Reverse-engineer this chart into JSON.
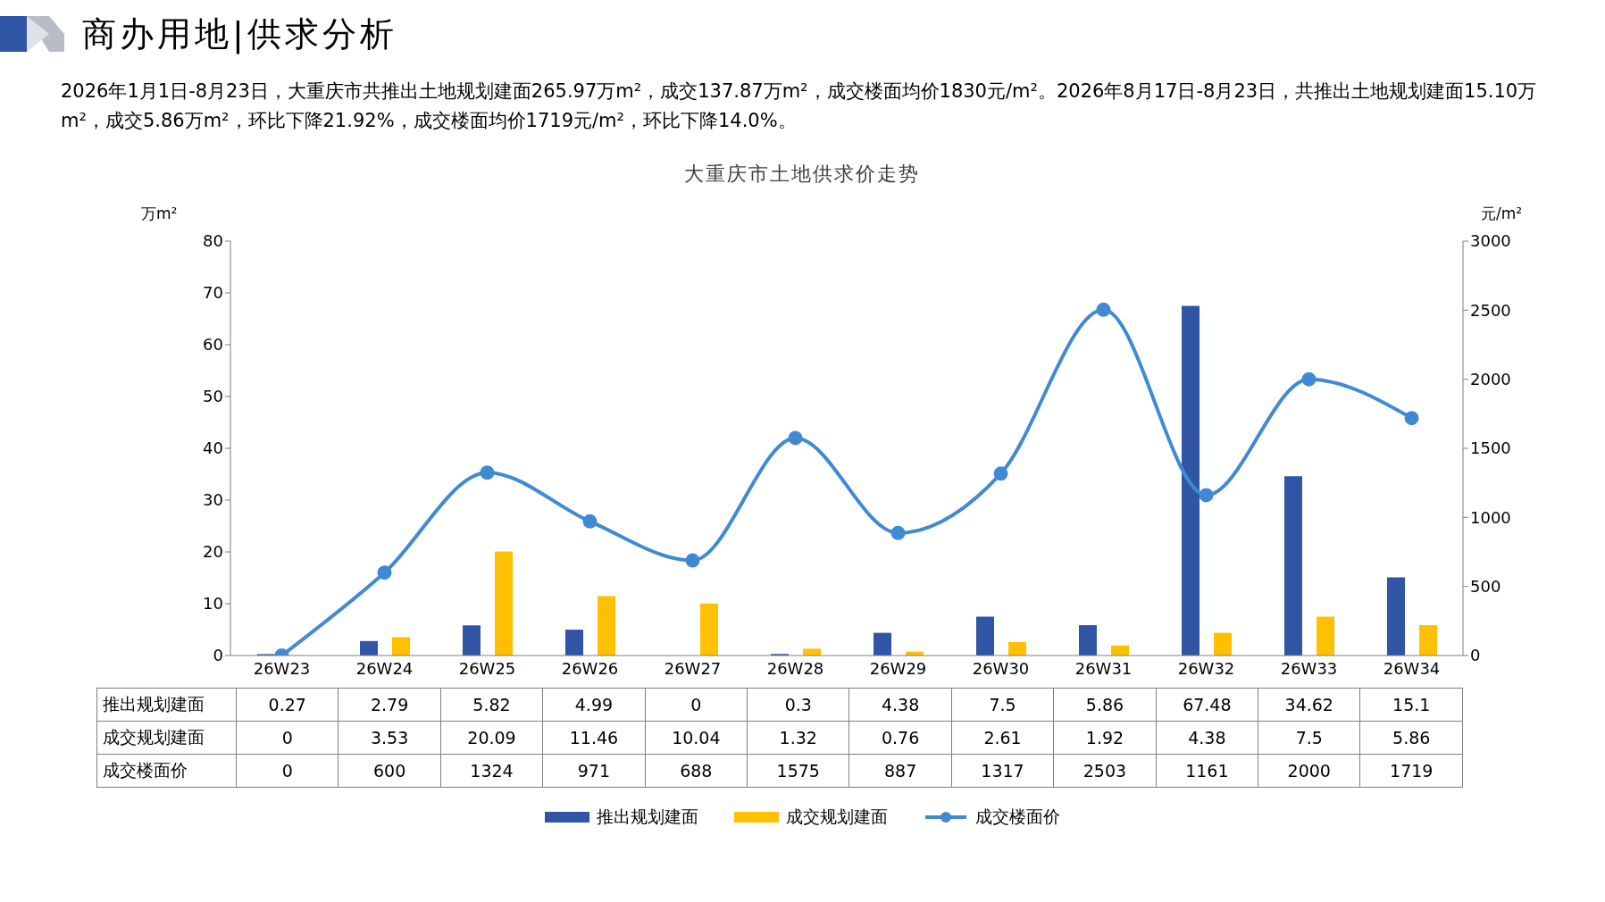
{
  "chart_data": {
    "type": "bar",
    "title": "大重庆市土地供求价走势",
    "subtitle": "2026年1月1日-8月23日，大重庆市共推出土地规划建面265.97万m²，成交137.87万m²，成交楼面均价1830元/m²。2026年8月17日-8月23日，共推出土地规划建面15.10万m²，成交5.86万m²，环比下降21.92%，成交楼面均价1719元/m²，环比下降14.0%。",
    "annotations": [
      "商办用地|供求分析"
    ],
    "ylabel": "万m²",
    "y2label": "元/m²",
    "categories": [
      "26W23",
      "26W24",
      "26W25",
      "26W26",
      "26W27",
      "26W28",
      "26W29",
      "26W30",
      "26W31",
      "26W32",
      "26W33",
      "26W34"
    ],
    "series": [
      {
        "name": "推出规划建面",
        "color": "#2f55a4",
        "values": [
          0.27,
          2.79,
          5.82,
          4.99,
          0,
          0.3,
          4.38,
          7.5,
          5.86,
          67.48,
          34.62,
          15.1
        ]
      },
      {
        "name": "成交规划建面",
        "color": "#ffc000",
        "values": [
          0,
          3.53,
          20.09,
          11.46,
          10.04,
          1.32,
          0.76,
          2.61,
          1.92,
          4.38,
          7.5,
          5.86
        ]
      },
      {
        "name": "成交楼面价",
        "type": "line",
        "axis": "y2",
        "color": "#3f8ad2",
        "values": [
          0,
          600,
          1324,
          971,
          688,
          1575,
          887,
          1317,
          2503,
          1161,
          2000,
          1719
        ]
      }
    ],
    "ylim": [
      0,
      80
    ],
    "yticks": [
      0,
      10,
      20,
      30,
      40,
      50,
      60,
      70,
      80
    ],
    "y2lim": [
      0,
      3000
    ],
    "y2ticks": [
      0,
      500,
      1000,
      1500,
      2000,
      2500,
      3000
    ],
    "data_labels": true,
    "legend": "bottom",
    "grid": false,
    "marker": "circle",
    "line_style": "solid"
  }
}
